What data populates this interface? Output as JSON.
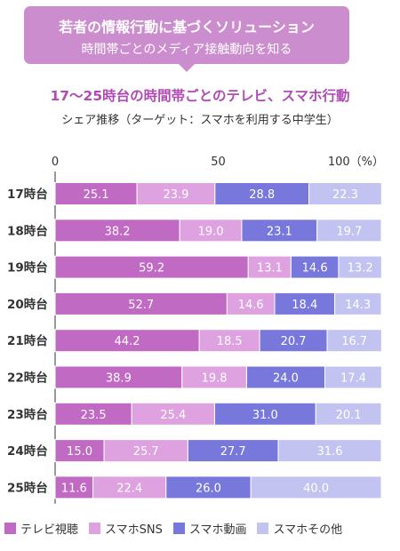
{
  "banner": {
    "title": "若者の情報行動に基づくソリューション",
    "subtitle": "時間帯ごとのメディア接触動向を知る"
  },
  "heading": "17〜25時台の時間帯ごとのテレビ、スマホ行動",
  "subheading": "シェア推移（ターゲット：スマホを利用する中学生）",
  "chart_data": {
    "type": "bar",
    "orientation": "horizontal",
    "stacked": true,
    "categories": [
      "17時台",
      "18時台",
      "19時台",
      "20時台",
      "21時台",
      "22時台",
      "23時台",
      "24時台",
      "25時台"
    ],
    "series": [
      {
        "name": "テレビ視聴",
        "color": "#c16ac4",
        "values": [
          25.1,
          38.2,
          59.2,
          52.7,
          44.2,
          38.9,
          23.5,
          15.0,
          11.6
        ],
        "labels": [
          "25.1",
          "38.2",
          "59.2",
          "52.7",
          "44.2",
          "38.9",
          "23.5",
          "15.0",
          "11.6"
        ]
      },
      {
        "name": "スマホSNS",
        "color": "#dfa2e0",
        "values": [
          23.9,
          19.0,
          13.1,
          14.6,
          18.5,
          19.8,
          25.4,
          25.7,
          22.4
        ],
        "labels": [
          "23.9",
          "19.0",
          "13.1",
          "14.6",
          "18.5",
          "19.8",
          "25.4",
          "25.7",
          "22.4"
        ]
      },
      {
        "name": "スマホ動画",
        "color": "#7877dc",
        "values": [
          28.8,
          23.1,
          14.6,
          18.4,
          20.7,
          24.0,
          31.0,
          27.7,
          26.0
        ],
        "labels": [
          "28.8",
          "23.1",
          "14.6",
          "18.4",
          "20.7",
          "24.0",
          "31.0",
          "27.7",
          "26.0"
        ]
      },
      {
        "name": "スマホその他",
        "color": "#c3c3f2",
        "values": [
          22.3,
          19.7,
          13.2,
          14.3,
          16.7,
          17.4,
          20.1,
          31.6,
          40.0
        ],
        "labels": [
          "22.3",
          "19.7",
          "13.2",
          "14.3",
          "16.7",
          "17.4",
          "20.1",
          "31.6",
          "40.0"
        ]
      }
    ],
    "xticks": [
      "0",
      "50",
      "100（%）"
    ],
    "xlim": [
      0,
      100
    ]
  }
}
